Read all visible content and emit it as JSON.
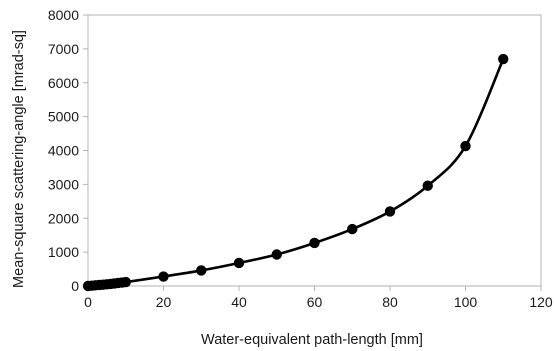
{
  "chart_data": {
    "type": "scatter",
    "xlabel": "Water-equivalent path-length  [mm]",
    "ylabel": "Mean-square scattering-angle [mrad-sq]",
    "xlim": [
      0,
      120
    ],
    "ylim": [
      0,
      8000
    ],
    "x_ticks": [
      0,
      20,
      40,
      60,
      80,
      100,
      120
    ],
    "y_ticks": [
      0,
      1000,
      2000,
      3000,
      4000,
      5000,
      6000,
      7000,
      8000
    ],
    "grid": false,
    "legend": "none",
    "marker_color": "#000000",
    "line_color": "#000000",
    "series": [
      {
        "x": [
          0,
          1,
          2,
          3,
          4,
          5,
          6,
          7,
          8,
          9,
          10,
          20,
          30,
          40,
          50,
          60,
          70,
          80,
          90,
          100,
          110
        ],
        "y": [
          0,
          10,
          20,
          30,
          40,
          50,
          60,
          75,
          90,
          100,
          115,
          280,
          460,
          680,
          930,
          1270,
          1680,
          2200,
          2960,
          4130,
          6700
        ]
      }
    ]
  }
}
